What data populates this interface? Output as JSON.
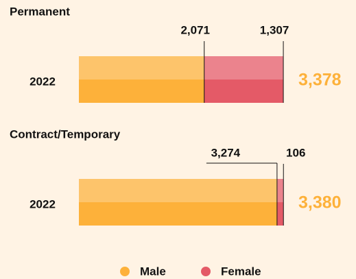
{
  "chart_data": {
    "type": "bar",
    "orientation": "horizontal",
    "stacked": true,
    "panel_titles": [
      "Permanent",
      "Contract/Temporary"
    ],
    "categories": [
      "2022",
      "2022"
    ],
    "series": [
      {
        "name": "Male",
        "color": "#fdb13a",
        "values": [
          2071,
          3274
        ],
        "value_labels": [
          "2,071",
          "3,274"
        ]
      },
      {
        "name": "Female",
        "color": "#e45a67",
        "values": [
          1307,
          106
        ],
        "value_labels": [
          "1,307",
          "106"
        ]
      }
    ],
    "totals": [
      3378,
      3380
    ],
    "total_labels": [
      "3,378",
      "3,380"
    ],
    "xlim": [
      0,
      3400
    ]
  }
}
